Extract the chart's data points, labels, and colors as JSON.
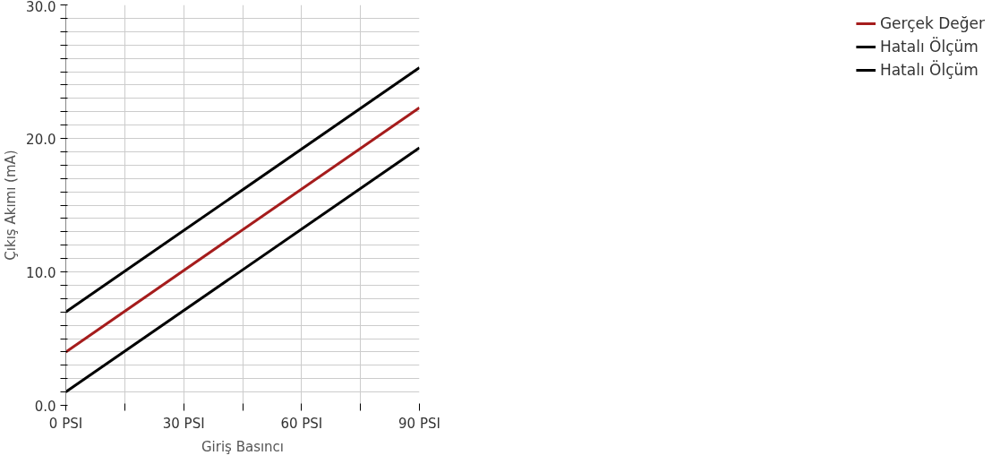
{
  "chart_data": {
    "type": "line",
    "xlabel": "Giriş Basıncı",
    "ylabel": "Çıkış Akımı (mA)",
    "x": [
      0,
      90
    ],
    "series": [
      {
        "name": "Gerçek Değer",
        "color": "#a51c1c",
        "values": [
          4.0,
          22.3
        ]
      },
      {
        "name": "Hatalı Ölçüm",
        "color": "#000000",
        "values": [
          7.0,
          25.3
        ]
      },
      {
        "name": "Hatalı Ölçüm",
        "color": "#000000",
        "values": [
          1.0,
          19.3
        ]
      }
    ],
    "xlim": [
      0,
      90
    ],
    "ylim": [
      0,
      30
    ],
    "xticks": [
      {
        "value": 0,
        "label": "0 PSI"
      },
      {
        "value": 15,
        "label": null
      },
      {
        "value": 30,
        "label": "30 PSI"
      },
      {
        "value": 45,
        "label": null
      },
      {
        "value": 60,
        "label": "60 PSI"
      },
      {
        "value": 75,
        "label": null
      },
      {
        "value": 90,
        "label": "90 PSI"
      }
    ],
    "yticks": [
      {
        "value": 0,
        "label": "0.0"
      },
      {
        "value": 1,
        "label": null
      },
      {
        "value": 2,
        "label": null
      },
      {
        "value": 3,
        "label": null
      },
      {
        "value": 4,
        "label": null
      },
      {
        "value": 5,
        "label": null
      },
      {
        "value": 6,
        "label": null
      },
      {
        "value": 7,
        "label": null
      },
      {
        "value": 8,
        "label": null
      },
      {
        "value": 9,
        "label": null
      },
      {
        "value": 10,
        "label": "10.0"
      },
      {
        "value": 11,
        "label": null
      },
      {
        "value": 12,
        "label": null
      },
      {
        "value": 13,
        "label": null
      },
      {
        "value": 14,
        "label": null
      },
      {
        "value": 15,
        "label": null
      },
      {
        "value": 16,
        "label": null
      },
      {
        "value": 17,
        "label": null
      },
      {
        "value": 18,
        "label": null
      },
      {
        "value": 19,
        "label": null
      },
      {
        "value": 20,
        "label": "20.0"
      },
      {
        "value": 21,
        "label": null
      },
      {
        "value": 22,
        "label": null
      },
      {
        "value": 23,
        "label": null
      },
      {
        "value": 24,
        "label": null
      },
      {
        "value": 25,
        "label": null
      },
      {
        "value": 26,
        "label": null
      },
      {
        "value": 27,
        "label": null
      },
      {
        "value": 28,
        "label": null
      },
      {
        "value": 29,
        "label": null
      },
      {
        "value": 30,
        "label": "30.0"
      }
    ],
    "grid": true,
    "legend": "right",
    "line_style": "solid",
    "marker": "none"
  }
}
